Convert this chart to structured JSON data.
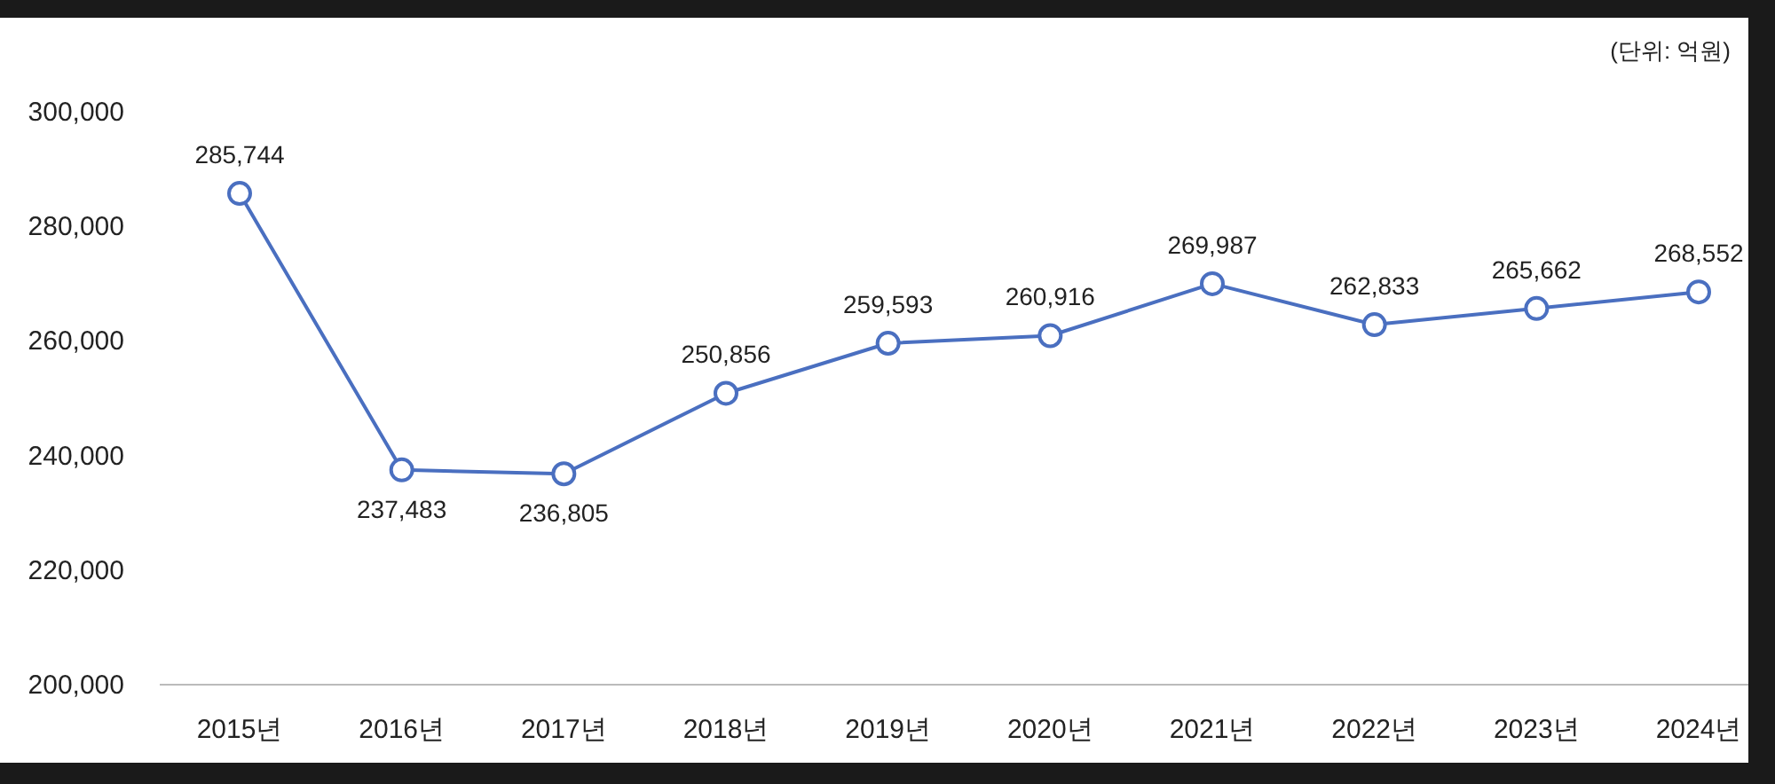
{
  "chart_data": {
    "type": "line",
    "categories": [
      "2015년",
      "2016년",
      "2017년",
      "2018년",
      "2019년",
      "2020년",
      "2021년",
      "2022년",
      "2023년",
      "2024년"
    ],
    "series": [
      {
        "color": "#4a6fc0",
        "values": [
          285744,
          237483,
          236805,
          250856,
          259593,
          260916,
          269987,
          262833,
          265662,
          268552
        ],
        "value_labels": [
          "285,744",
          "237,483",
          "236,805",
          "250,856",
          "259,593",
          "260,916",
          "269,987",
          "262,833",
          "265,662",
          "268,552"
        ]
      }
    ],
    "ylim": [
      200000,
      300000
    ],
    "yticks": [
      {
        "value": 200000,
        "label": "200,000"
      },
      {
        "value": 220000,
        "label": "220,000"
      },
      {
        "value": 240000,
        "label": "240,000"
      },
      {
        "value": 260000,
        "label": "260,000"
      },
      {
        "value": 280000,
        "label": "280,000"
      },
      {
        "value": 300000,
        "label": "300,000"
      }
    ],
    "annotations": [
      "(단위: 억원)"
    ],
    "grid": false,
    "marker": "circle",
    "line_style": "solid"
  }
}
